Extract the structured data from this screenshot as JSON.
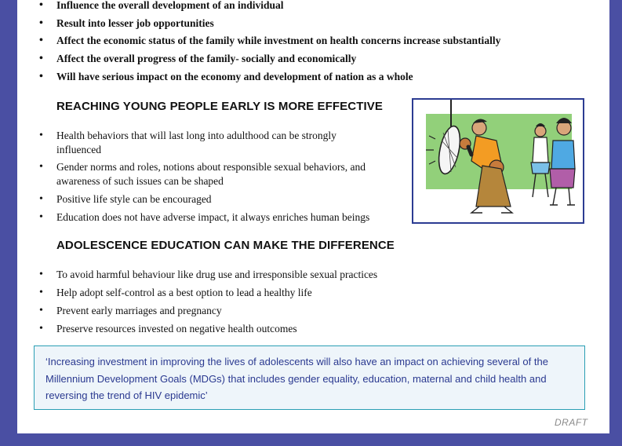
{
  "impact_list": [
    "Influence the overall development of an individual",
    "Result into lesser job opportunities",
    "Affect the economic status of the family while investment on health concerns increase substantially",
    "Affect the overall progress of the family- socially and economically",
    "Will have serious impact on the economy and development of nation as a whole"
  ],
  "section1": {
    "heading": "REACHING YOUNG PEOPLE EARLY IS MORE EFFECTIVE",
    "items": [
      "Health behaviors that will last long into adulthood can be strongly",
      "influenced",
      "Gender norms and roles, notions about responsible sexual behaviors, and",
      "awareness of such issues can be shaped",
      "Positive life style can be encouraged",
      "Education does not have adverse impact, it always enriches human beings"
    ]
  },
  "section2": {
    "heading": "ADOLESCENCE EDUCATION CAN MAKE THE DIFFERENCE",
    "items": [
      "To avoid harmful behaviour like drug use and irresponsible sexual practices",
      "Help adopt self-control as a best option to lead a healthy life",
      "Prevent early marriages and pregnancy",
      "Preserve resources invested on negative health outcomes"
    ]
  },
  "quote": {
    "line1": "‘Increasing investment in improving the lives of adolescents will also have an impact on achieving several of the",
    "line2": "Millennium Development Goals (MDGs) that includes gender equality, education, maternal and child health and",
    "line3": "reversing the trend of HIV epidemic’"
  },
  "footer": {
    "draft": "DRAFT"
  },
  "colors": {
    "frame": "#4a4fa3",
    "illustration_border": "#2c3c92",
    "quote_border": "#2a9fb4",
    "quote_text": "#2a3990",
    "illustration_bg": "#92d07a"
  }
}
